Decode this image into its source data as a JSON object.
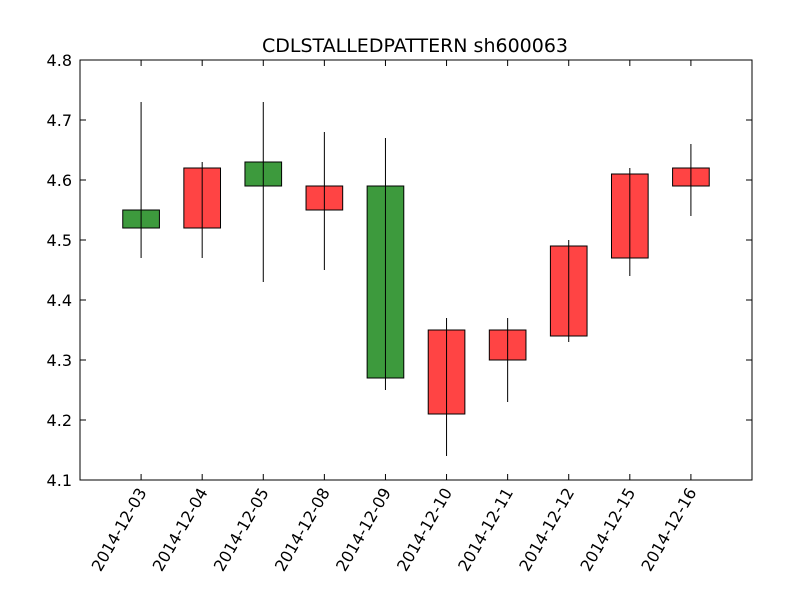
{
  "chart_data": {
    "type": "candlestick",
    "title": "CDLSTALLEDPATTERN sh600063",
    "xlabel": "",
    "ylabel": "",
    "ylim": [
      4.1,
      4.8
    ],
    "yticks": [
      "4.1",
      "4.2",
      "4.3",
      "4.4",
      "4.5",
      "4.6",
      "4.7",
      "4.8"
    ],
    "grid": false,
    "up_color": "#ff4444",
    "down_color": "#3d9a3d",
    "categories": [
      "2014-12-03",
      "2014-12-04",
      "2014-12-05",
      "2014-12-08",
      "2014-12-09",
      "2014-12-10",
      "2014-12-11",
      "2014-12-12",
      "2014-12-15",
      "2014-12-16"
    ],
    "candles": [
      {
        "date": "2014-12-03",
        "open": 4.55,
        "close": 4.52,
        "high": 4.73,
        "low": 4.47
      },
      {
        "date": "2014-12-04",
        "open": 4.52,
        "close": 4.62,
        "high": 4.63,
        "low": 4.47
      },
      {
        "date": "2014-12-05",
        "open": 4.63,
        "close": 4.59,
        "high": 4.73,
        "low": 4.43
      },
      {
        "date": "2014-12-08",
        "open": 4.55,
        "close": 4.59,
        "high": 4.68,
        "low": 4.45
      },
      {
        "date": "2014-12-09",
        "open": 4.59,
        "close": 4.27,
        "high": 4.67,
        "low": 4.25
      },
      {
        "date": "2014-12-10",
        "open": 4.21,
        "close": 4.35,
        "high": 4.37,
        "low": 4.14
      },
      {
        "date": "2014-12-11",
        "open": 4.3,
        "close": 4.35,
        "high": 4.37,
        "low": 4.23
      },
      {
        "date": "2014-12-12",
        "open": 4.34,
        "close": 4.49,
        "high": 4.5,
        "low": 4.33
      },
      {
        "date": "2014-12-15",
        "open": 4.47,
        "close": 4.61,
        "high": 4.62,
        "low": 4.44
      },
      {
        "date": "2014-12-16",
        "open": 4.59,
        "close": 4.62,
        "high": 4.66,
        "low": 4.54
      }
    ]
  }
}
